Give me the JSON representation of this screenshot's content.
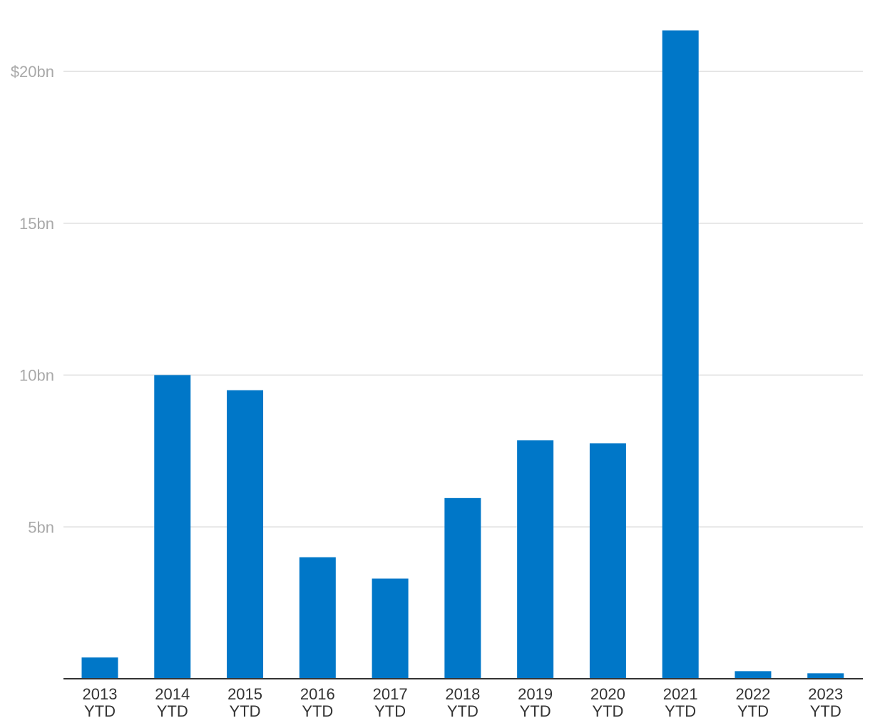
{
  "chart_data": {
    "type": "bar",
    "title": "",
    "xlabel": "",
    "ylabel": "",
    "categories": [
      [
        "2013",
        "YTD"
      ],
      [
        "2014",
        "YTD"
      ],
      [
        "2015",
        "YTD"
      ],
      [
        "2016",
        "YTD"
      ],
      [
        "2017",
        "YTD"
      ],
      [
        "2018",
        "YTD"
      ],
      [
        "2019",
        "YTD"
      ],
      [
        "2020",
        "YTD"
      ],
      [
        "2021",
        "YTD"
      ],
      [
        "2022",
        "YTD"
      ],
      [
        "2023",
        "YTD"
      ]
    ],
    "values": [
      0.7,
      10.0,
      9.5,
      4.0,
      3.3,
      5.95,
      7.85,
      7.75,
      21.35,
      0.25,
      0.18
    ],
    "unit": "bn USD",
    "ylim": [
      0,
      22
    ],
    "yticks": [
      {
        "value": 5,
        "label": "5bn"
      },
      {
        "value": 10,
        "label": "10bn"
      },
      {
        "value": 15,
        "label": "15bn"
      },
      {
        "value": 20,
        "label": "$20bn"
      }
    ],
    "grid": true,
    "legend": "none",
    "bar_color": "#0077c8"
  }
}
